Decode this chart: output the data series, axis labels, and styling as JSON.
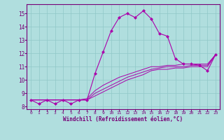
{
  "xlabel": "Windchill (Refroidissement éolien,°C)",
  "bg_color": "#b0dede",
  "line_color": "#aa00aa",
  "xlim": [
    -0.5,
    23.5
  ],
  "ylim": [
    7.8,
    15.7
  ],
  "yticks": [
    8,
    9,
    10,
    11,
    12,
    13,
    14,
    15
  ],
  "xticks": [
    0,
    1,
    2,
    3,
    4,
    5,
    6,
    7,
    8,
    9,
    10,
    11,
    12,
    13,
    14,
    15,
    16,
    17,
    18,
    19,
    20,
    21,
    22,
    23
  ],
  "main_line_x": [
    0,
    1,
    2,
    3,
    4,
    5,
    6,
    7,
    8,
    9,
    10,
    11,
    12,
    13,
    14,
    15,
    16,
    17,
    18,
    19,
    20,
    21,
    22,
    23
  ],
  "main_line_y": [
    8.5,
    8.2,
    8.5,
    8.2,
    8.5,
    8.2,
    8.5,
    8.5,
    10.5,
    12.1,
    13.7,
    14.7,
    15.0,
    14.7,
    15.2,
    14.6,
    13.5,
    13.3,
    11.6,
    11.2,
    11.2,
    11.1,
    10.7,
    11.9
  ],
  "line2_x": [
    0,
    1,
    2,
    3,
    4,
    5,
    6,
    7,
    8,
    9,
    10,
    11,
    12,
    13,
    14,
    15,
    16,
    17,
    18,
    19,
    20,
    21,
    22,
    23
  ],
  "line2_y": [
    8.5,
    8.5,
    8.5,
    8.5,
    8.5,
    8.5,
    8.5,
    8.6,
    9.2,
    9.6,
    9.9,
    10.2,
    10.4,
    10.6,
    10.8,
    11.0,
    11.0,
    11.1,
    11.1,
    11.2,
    11.2,
    11.2,
    11.2,
    11.9
  ],
  "line3_x": [
    0,
    1,
    2,
    3,
    4,
    5,
    6,
    7,
    8,
    9,
    10,
    11,
    12,
    13,
    14,
    15,
    16,
    17,
    18,
    19,
    20,
    21,
    22,
    23
  ],
  "line3_y": [
    8.5,
    8.5,
    8.5,
    8.5,
    8.5,
    8.5,
    8.5,
    8.5,
    9.0,
    9.3,
    9.6,
    9.9,
    10.2,
    10.4,
    10.6,
    10.8,
    10.9,
    11.0,
    11.0,
    11.0,
    11.1,
    11.1,
    11.1,
    11.9
  ],
  "line4_x": [
    0,
    1,
    2,
    3,
    4,
    5,
    6,
    7,
    8,
    9,
    10,
    11,
    12,
    13,
    14,
    15,
    16,
    17,
    18,
    19,
    20,
    21,
    22,
    23
  ],
  "line4_y": [
    8.5,
    8.5,
    8.5,
    8.5,
    8.5,
    8.5,
    8.5,
    8.5,
    8.8,
    9.1,
    9.4,
    9.7,
    10.0,
    10.2,
    10.4,
    10.7,
    10.8,
    10.8,
    10.9,
    10.9,
    11.0,
    11.0,
    11.0,
    11.9
  ]
}
